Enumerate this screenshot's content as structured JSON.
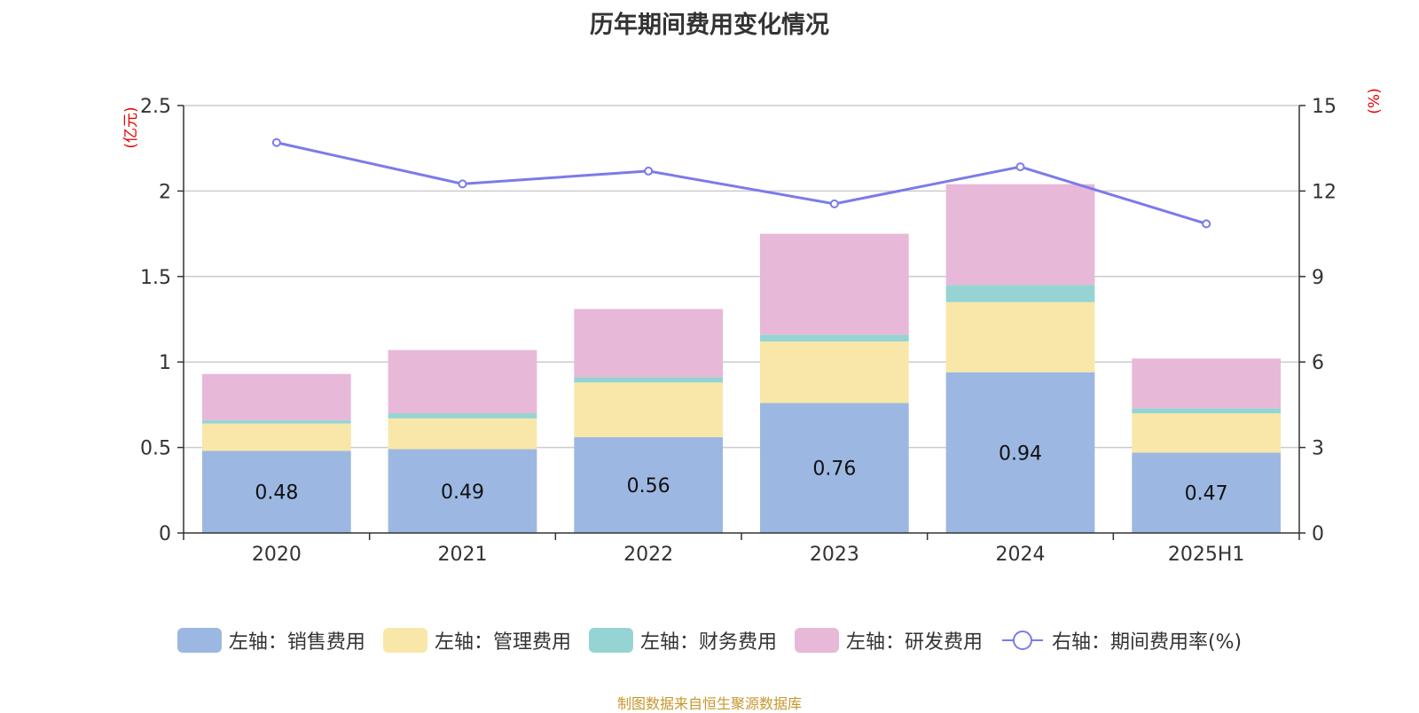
{
  "chart_data": {
    "type": "bar",
    "title": "历年期间费用变化情况",
    "categories": [
      "2020",
      "2021",
      "2022",
      "2023",
      "2024",
      "2025H1"
    ],
    "left_axis": {
      "unit": "(亿元)",
      "ylim": [
        0,
        2.5
      ],
      "ticks": [
        "0",
        "0.5",
        "1",
        "1.5",
        "2",
        "2.5"
      ]
    },
    "right_axis": {
      "unit": "(%)",
      "ylim": [
        0,
        15
      ],
      "ticks": [
        "0",
        "3",
        "6",
        "9",
        "12",
        "15"
      ]
    },
    "series": [
      {
        "name": "左轴：销售费用",
        "axis": "left",
        "kind": "stacked-bar",
        "color": "#9cb8e2",
        "values": [
          0.48,
          0.49,
          0.56,
          0.76,
          0.94,
          0.47
        ],
        "labels": [
          "0.48",
          "0.49",
          "0.56",
          "0.76",
          "0.94",
          "0.47"
        ]
      },
      {
        "name": "左轴：管理费用",
        "axis": "left",
        "kind": "stacked-bar",
        "color": "#f8e7a8",
        "values": [
          0.16,
          0.18,
          0.32,
          0.36,
          0.41,
          0.23
        ]
      },
      {
        "name": "左轴：财务费用",
        "axis": "left",
        "kind": "stacked-bar",
        "color": "#96d4d4",
        "values": [
          0.02,
          0.03,
          0.03,
          0.04,
          0.1,
          0.03
        ]
      },
      {
        "name": "左轴：研发费用",
        "axis": "left",
        "kind": "stacked-bar",
        "color": "#e8b8d9",
        "values": [
          0.27,
          0.37,
          0.4,
          0.59,
          0.59,
          0.29
        ]
      },
      {
        "name": "右轴：期间费用率(%)",
        "axis": "right",
        "kind": "line",
        "color": "#7b7bea",
        "values": [
          13.7,
          12.25,
          12.7,
          11.55,
          12.85,
          10.85
        ]
      }
    ],
    "grid": true,
    "legend_position": "bottom"
  },
  "source_note": "制图数据来自恒生聚源数据库"
}
